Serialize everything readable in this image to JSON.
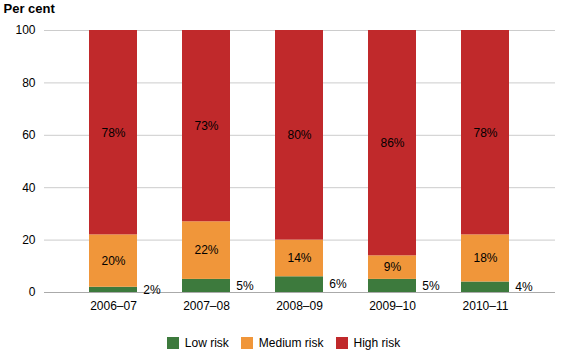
{
  "chart_data": {
    "type": "bar",
    "stacked": true,
    "data_labels": true,
    "grid": true,
    "legend": "bottom",
    "ylabel": "Per cent",
    "categories": [
      "2006–07",
      "2007–08",
      "2008–09",
      "2009–10",
      "2010–11"
    ],
    "series": [
      {
        "name": "Low risk",
        "color": "#3d7a3d",
        "values": [
          2,
          5,
          6,
          5,
          4
        ],
        "value_labels": [
          "2%",
          "5%",
          "6%",
          "5%",
          "4%"
        ]
      },
      {
        "name": "Medium risk",
        "color": "#f0963a",
        "values": [
          20,
          22,
          14,
          9,
          18
        ],
        "value_labels": [
          "20%",
          "22%",
          "14%",
          "9%",
          "18%"
        ]
      },
      {
        "name": "High risk",
        "color": "#c0292b",
        "values": [
          78,
          73,
          80,
          86,
          78
        ],
        "value_labels": [
          "78%",
          "73%",
          "80%",
          "86%",
          "78%"
        ]
      }
    ],
    "ylim": [
      0,
      100
    ],
    "yticks": [
      0,
      20,
      40,
      60,
      80,
      100
    ]
  }
}
